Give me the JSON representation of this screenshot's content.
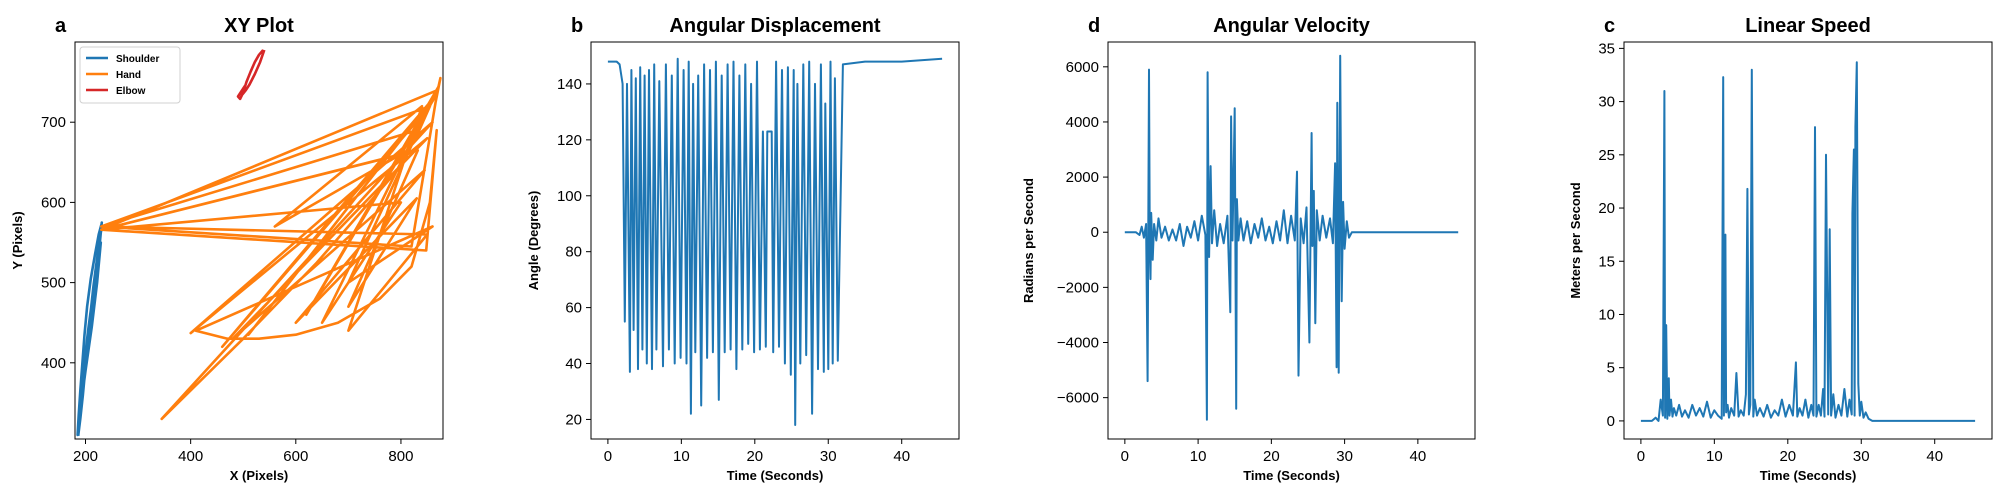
{
  "chart_data": [
    {
      "type": "line",
      "panel_letter": "a",
      "title": "XY Plot",
      "xlabel": "X (Pixels)",
      "ylabel": "Y (Pixels)",
      "xlim": [
        180,
        880
      ],
      "ylim": [
        305,
        800
      ],
      "xticks": [
        200,
        400,
        600,
        800
      ],
      "yticks": [
        400,
        500,
        600,
        700
      ],
      "grid": false,
      "legend_position": "top-left",
      "series": [
        {
          "name": "Shoulder",
          "color": "#1f77b4",
          "x": [
            186,
            190,
            195,
            200,
            205,
            210,
            215,
            220,
            225,
            228,
            230,
            225,
            218,
            210,
            203,
            198,
            194,
            190,
            187,
            185,
            190,
            200,
            212,
            222,
            229,
            225,
            218,
            210,
            200,
            192,
            188,
            190,
            195,
            205,
            215,
            225,
            231,
            228,
            232,
            226,
            230
          ],
          "y": [
            309,
            330,
            360,
            395,
            430,
            465,
            495,
            520,
            545,
            560,
            572,
            560,
            535,
            505,
            470,
            435,
            400,
            365,
            335,
            310,
            340,
            390,
            445,
            500,
            550,
            530,
            490,
            445,
            395,
            350,
            320,
            345,
            385,
            440,
            490,
            535,
            575,
            560,
            570,
            562,
            568
          ]
        },
        {
          "name": "Hand",
          "color": "#ff7f0e",
          "x": [
            230,
            832,
            700,
            830,
            600,
            845,
            480,
            850,
            400,
            860,
            345,
            500,
            640,
            740,
            800,
            835,
            855,
            863,
            870,
            875,
            866,
            820,
            230,
            855,
            460,
            862,
            510,
            868,
            620,
            872,
            700,
            860,
            410,
            470,
            530,
            600,
            680,
            760,
            820,
            855,
            868,
            848,
            230,
            800,
            560,
            840,
            700,
            850,
            230,
            830,
            650,
            800,
            230,
            870
          ],
          "y": [
            566,
            665,
            470,
            605,
            450,
            640,
            430,
            680,
            437,
            700,
            330,
            430,
            525,
            600,
            645,
            690,
            720,
            735,
            740,
            755,
            725,
            545,
            570,
            720,
            420,
            730,
            435,
            735,
            460,
            745,
            500,
            570,
            440,
            430,
            430,
            435,
            450,
            480,
            520,
            600,
            690,
            540,
            566,
            660,
            570,
            720,
            440,
            560,
            570,
            690,
            450,
            600,
            566,
            740
          ]
        },
        {
          "name": "Elbow",
          "color": "#d62728",
          "x": [
            540,
            532,
            522,
            512,
            505,
            499,
            503,
            495,
            490,
            494,
            500,
            506,
            514,
            522,
            530,
            538
          ],
          "y": [
            790,
            775,
            760,
            747,
            740,
            735,
            745,
            737,
            732,
            729,
            737,
            750,
            763,
            775,
            784,
            790
          ]
        }
      ]
    },
    {
      "type": "line",
      "panel_letter": "b",
      "title": "Angular Displacement",
      "xlabel": "Time (Seconds)",
      "ylabel": "Angle (Degrees)",
      "xlim": [
        -2.3,
        47.8
      ],
      "ylim": [
        13,
        155
      ],
      "xticks": [
        0,
        10,
        20,
        30,
        40
      ],
      "yticks": [
        20,
        40,
        60,
        80,
        100,
        120,
        140
      ],
      "grid": false,
      "series": [
        {
          "name": "",
          "color": "#1f77b4",
          "x": [
            0,
            1.2,
            1.6,
            2.0,
            2.3,
            2.6,
            3.0,
            3.2,
            3.5,
            3.8,
            4.1,
            4.4,
            4.7,
            5.0,
            5.3,
            5.6,
            6.0,
            6.3,
            6.6,
            7.0,
            7.5,
            7.9,
            8.3,
            8.7,
            9.1,
            9.5,
            9.9,
            10.3,
            10.7,
            11.0,
            11.3,
            11.6,
            11.9,
            12.3,
            12.7,
            13.1,
            13.5,
            13.9,
            14.3,
            14.7,
            15.1,
            15.5,
            15.9,
            16.3,
            16.7,
            17.1,
            17.5,
            17.9,
            18.3,
            18.7,
            19.1,
            19.5,
            19.9,
            20.3,
            20.7,
            21.1,
            21.5,
            21.7,
            22.3,
            22.5,
            22.9,
            23.3,
            23.7,
            24.1,
            24.5,
            24.9,
            25.3,
            25.5,
            25.8,
            26.2,
            26.6,
            27.0,
            27.4,
            27.8,
            28.2,
            28.6,
            29.0,
            29.4,
            29.6,
            30.0,
            30.3,
            30.6,
            30.9,
            31.3,
            32,
            35,
            40,
            45.5
          ],
          "y": [
            148,
            148,
            147,
            140,
            55,
            140,
            37,
            145,
            52,
            142,
            38,
            146,
            45,
            143,
            40,
            145,
            38,
            147,
            45,
            141,
            39,
            147,
            45,
            143,
            40,
            149,
            42,
            145,
            40,
            148,
            22,
            140,
            44,
            143,
            25,
            147,
            42,
            145,
            44,
            148,
            27,
            143,
            44,
            147,
            45,
            148,
            38,
            143,
            45,
            147,
            47,
            140,
            44,
            148,
            45,
            123,
            46,
            123,
            123,
            44,
            148,
            46,
            145,
            40,
            146,
            36,
            145,
            18,
            140,
            40,
            147,
            43,
            148,
            22,
            140,
            38,
            147,
            37,
            133,
            38,
            148,
            40,
            142,
            41,
            147,
            148,
            148,
            149
          ]
        }
      ]
    },
    {
      "type": "line",
      "panel_letter": "d",
      "title": "Angular Velocity",
      "xlabel": "Time (Seconds)",
      "ylabel": "Radians per Second",
      "xlim": [
        -2.3,
        47.8
      ],
      "ylim": [
        -7500,
        6900
      ],
      "xticks": [
        0,
        10,
        20,
        30,
        40
      ],
      "yticks": [
        -6000,
        -4000,
        -2000,
        0,
        2000,
        4000,
        6000
      ],
      "grid": false,
      "series": [
        {
          "name": "",
          "color": "#1f77b4",
          "x": [
            0,
            1.5,
            2.0,
            2.3,
            2.6,
            2.9,
            3.1,
            3.3,
            3.4,
            3.5,
            3.6,
            3.8,
            4.0,
            4.3,
            4.6,
            5.0,
            5.5,
            6.0,
            6.5,
            7.0,
            7.5,
            8.0,
            8.5,
            9.0,
            9.5,
            10.0,
            10.5,
            11.0,
            11.2,
            11.3,
            11.4,
            11.5,
            11.7,
            11.9,
            12.2,
            12.6,
            13.0,
            13.5,
            14.0,
            14.4,
            14.5,
            14.7,
            15.0,
            15.2,
            15.3,
            15.5,
            15.8,
            16.2,
            16.7,
            17.2,
            17.7,
            18.2,
            18.7,
            19.2,
            19.7,
            20.2,
            20.7,
            21.2,
            21.7,
            22.2,
            22.7,
            23.2,
            23.5,
            23.7,
            24.0,
            24.4,
            24.8,
            25.2,
            25.5,
            25.6,
            25.8,
            26.0,
            26.2,
            26.6,
            27.0,
            27.5,
            28.0,
            28.4,
            28.7,
            28.9,
            29.0,
            29.2,
            29.4,
            29.6,
            29.8,
            30.0,
            30.3,
            30.6,
            31,
            32,
            35,
            40,
            45.5
          ],
          "y": [
            0,
            0,
            -100,
            200,
            -200,
            300,
            -5400,
            5900,
            -500,
            -1700,
            700,
            -1000,
            300,
            -300,
            500,
            -200,
            200,
            -300,
            100,
            -300,
            300,
            -500,
            200,
            -200,
            400,
            -300,
            600,
            -100,
            -6800,
            5800,
            1500,
            -900,
            2400,
            -400,
            800,
            -500,
            300,
            -400,
            600,
            -2900,
            4200,
            -300,
            4500,
            -6400,
            1200,
            -300,
            500,
            -300,
            400,
            -400,
            300,
            -200,
            500,
            -300,
            200,
            -400,
            400,
            -300,
            800,
            -400,
            600,
            -300,
            2200,
            -5200,
            500,
            -400,
            900,
            -4000,
            3600,
            -500,
            1500,
            -3300,
            800,
            -300,
            600,
            -200,
            500,
            -400,
            2500,
            -4900,
            4700,
            -5100,
            6400,
            -2500,
            1100,
            -600,
            400,
            -200,
            0,
            0,
            0,
            0,
            0
          ]
        }
      ]
    },
    {
      "type": "line",
      "panel_letter": "c",
      "title": "Linear Speed",
      "xlabel": "Time (Seconds)",
      "ylabel": "Meters per Second",
      "xlim": [
        -2.3,
        47.8
      ],
      "ylim": [
        -1.7,
        35.6
      ],
      "xticks": [
        0,
        10,
        20,
        30,
        40
      ],
      "yticks": [
        0,
        5,
        10,
        15,
        20,
        25,
        30,
        35
      ],
      "grid": false,
      "series": [
        {
          "name": "",
          "color": "#1f77b4",
          "x": [
            0,
            1.5,
            2.0,
            2.4,
            2.7,
            3.0,
            3.2,
            3.3,
            3.45,
            3.6,
            3.8,
            3.9,
            4.1,
            4.3,
            4.5,
            4.8,
            5.2,
            5.6,
            6.0,
            6.5,
            7.0,
            7.5,
            8.0,
            8.5,
            9.0,
            9.5,
            10.0,
            10.5,
            11.0,
            11.2,
            11.3,
            11.5,
            11.6,
            11.8,
            12.0,
            12.3,
            12.7,
            13.0,
            13.3,
            13.6,
            14.0,
            14.3,
            14.5,
            14.7,
            14.9,
            15.1,
            15.3,
            15.5,
            15.8,
            16.2,
            16.7,
            17.2,
            17.7,
            18.2,
            18.7,
            19.2,
            19.7,
            20.2,
            20.7,
            21.1,
            21.3,
            21.6,
            22.0,
            22.4,
            22.8,
            23.2,
            23.5,
            23.7,
            23.9,
            24.2,
            24.5,
            24.8,
            25.0,
            25.2,
            25.5,
            25.7,
            25.9,
            26.2,
            26.5,
            26.9,
            27.3,
            27.7,
            28.1,
            28.4,
            28.7,
            28.8,
            29.0,
            29.1,
            29.2,
            29.4,
            29.6,
            29.8,
            30.0,
            30.3,
            30.6,
            31.0,
            31.5,
            32,
            35,
            40,
            45.5
          ],
          "y": [
            0,
            0,
            0.3,
            0,
            2,
            0.5,
            31,
            0.3,
            9,
            0.2,
            4,
            0.5,
            2,
            0.4,
            1.2,
            0.5,
            1.5,
            0.4,
            1.0,
            0.3,
            1.5,
            0.5,
            1.2,
            0.4,
            1.8,
            0.3,
            1.0,
            0.5,
            0.2,
            32.3,
            0.5,
            17.5,
            0.8,
            1.5,
            0.3,
            1.2,
            0.5,
            4.5,
            0.4,
            1.0,
            0.5,
            2.5,
            21.8,
            0.6,
            1.5,
            33,
            0.4,
            2.0,
            0.5,
            1.2,
            0.4,
            1.5,
            0.3,
            1.0,
            0.5,
            2.0,
            0.4,
            1.5,
            0.5,
            5.5,
            0.4,
            1.2,
            0.5,
            2.0,
            0.3,
            1.5,
            0.5,
            27.6,
            0.4,
            1.5,
            0.5,
            3.0,
            0.4,
            25.0,
            0.6,
            18,
            0.5,
            2.5,
            0.3,
            1.5,
            0.5,
            3.0,
            0.4,
            2.0,
            0.6,
            19.5,
            25.5,
            0.5,
            27.6,
            33.7,
            3.5,
            0.5,
            1.8,
            0.3,
            0.8,
            0.2,
            0,
            0,
            0,
            0,
            0
          ]
        }
      ]
    }
  ]
}
